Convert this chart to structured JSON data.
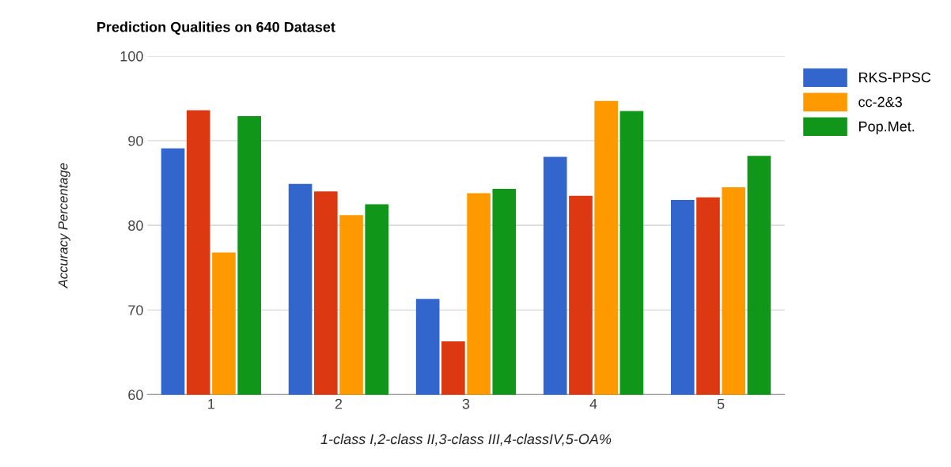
{
  "chart_data": {
    "type": "bar",
    "title": "Prediction Qualities on 640 Dataset",
    "xlabel": "1-class I,2-class II,3-class III,4-classIV,5-OA%",
    "ylabel": "Accuracy Percentage",
    "categories": [
      "1",
      "2",
      "3",
      "4",
      "5"
    ],
    "series": [
      {
        "name": "RKS-PPSC",
        "color": "#3366cc",
        "values": [
          89.1,
          84.9,
          71.3,
          88.1,
          83.0
        ]
      },
      {
        "color": "#dc3912",
        "values": [
          93.6,
          84.0,
          66.3,
          83.5,
          83.3
        ]
      },
      {
        "name": "cc-2&3",
        "color": "#ff9900",
        "values": [
          76.8,
          81.2,
          83.8,
          94.7,
          84.5
        ]
      },
      {
        "name": "Pop.Met.",
        "color": "#109618",
        "values": [
          92.9,
          82.5,
          84.3,
          93.5,
          88.2
        ]
      }
    ],
    "ylim": [
      60,
      100
    ],
    "yticks": [
      60,
      70,
      80,
      90,
      100
    ],
    "grid": "y",
    "legend": "right"
  }
}
